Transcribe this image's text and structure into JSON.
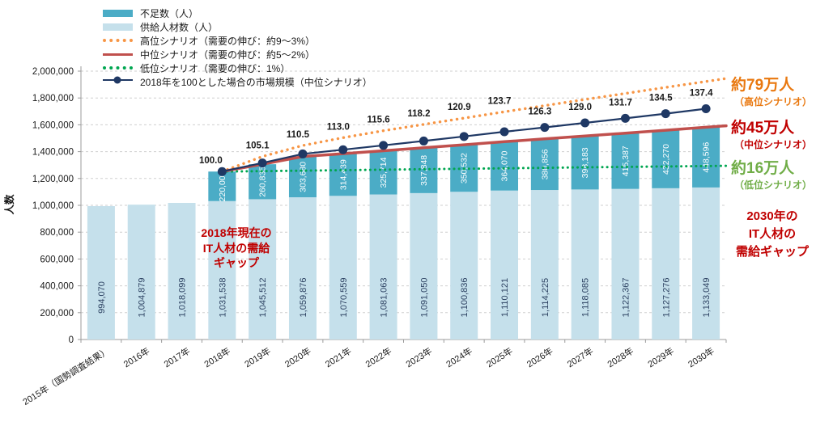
{
  "legend": {
    "items": [
      {
        "key": "shortage",
        "label": "不足数（人）"
      },
      {
        "key": "supply",
        "label": "供給人材数（人）"
      },
      {
        "key": "high",
        "label": "高位シナリオ（需要の伸び：約9～3%）"
      },
      {
        "key": "mid",
        "label": "中位シナリオ（需要の伸び：約5～2%）"
      },
      {
        "key": "low",
        "label": "低位シナリオ（需要の伸び：1%）"
      },
      {
        "key": "index",
        "label": "2018年を100とした場合の市場規模（中位シナリオ）"
      }
    ]
  },
  "annotations": {
    "current_gap": {
      "line1": "2018年現在の",
      "line2": "IT人材の需給",
      "line3": "ギャップ",
      "color": "#c00000"
    },
    "gap_high": {
      "value": "約79万人",
      "scenario": "（高位シナリオ）",
      "color": "#e9780f"
    },
    "gap_mid": {
      "value": "約45万人",
      "scenario": "（中位シナリオ）",
      "color": "#c00000"
    },
    "gap_low": {
      "value": "約16万人",
      "scenario": "（低位シナリオ）",
      "color": "#70ad47"
    },
    "gap_2030": {
      "line1": "2030年の",
      "line2": "IT人材の",
      "line3": "需給ギャップ",
      "color": "#c00000"
    }
  },
  "chart_data": {
    "type": "combo: stacked bar + line",
    "ylabel": "人数",
    "ylim": [
      0,
      2000000
    ],
    "ytick_step": 200000,
    "grid": "horizontal dashed",
    "legend_position": "top-left",
    "categories": [
      "2015年（国勢調査結果）",
      "2016年",
      "2017年",
      "2018年",
      "2019年",
      "2020年",
      "2021年",
      "2022年",
      "2023年",
      "2024年",
      "2025年",
      "2026年",
      "2027年",
      "2028年",
      "2029年",
      "2030年"
    ],
    "series": [
      {
        "key": "supply",
        "name": "供給人材数（人）",
        "type": "bar",
        "color": "#c5e0eb",
        "values": [
          994070,
          1004879,
          1018099,
          1031538,
          1045512,
          1059876,
          1070559,
          1081063,
          1091050,
          1100836,
          1110121,
          1114225,
          1118085,
          1122367,
          1127276,
          1133049
        ]
      },
      {
        "key": "shortage",
        "name": "不足数（人）",
        "type": "bar-stacked",
        "color": "#4bacc6",
        "values": [
          null,
          null,
          null,
          220000,
          260835,
          303680,
          314439,
          325714,
          337848,
          350532,
          364070,
          380856,
          398183,
          415387,
          432270,
          448596
        ]
      },
      {
        "key": "high",
        "name": "高位シナリオ（需要の伸び：約9～3%）",
        "type": "line-dotted",
        "color": "#f79646",
        "start_category_index": 3,
        "estimated": true,
        "values": [
          1251538,
          1364000,
          1446000,
          1504000,
          1556000,
          1603000,
          1650000,
          1697000,
          1743000,
          1789000,
          1834000,
          1879000,
          1923049
        ]
      },
      {
        "key": "mid",
        "name": "中位シナリオ（需要の伸び：約5～2%）",
        "type": "line",
        "color": "#c0504d",
        "start_category_index": 3,
        "derived": "supply + shortage",
        "values": [
          1251538,
          1306347,
          1363556,
          1384998,
          1406777,
          1428898,
          1451368,
          1474191,
          1495081,
          1516268,
          1537754,
          1559546,
          1581645
        ]
      },
      {
        "key": "low",
        "name": "低位シナリオ（需要の伸び：1%）",
        "type": "line-dotted",
        "color": "#00a651",
        "start_category_index": 3,
        "estimated": true,
        "values": [
          1251538,
          1255000,
          1258500,
          1262000,
          1265500,
          1269000,
          1272400,
          1275900,
          1279400,
          1282900,
          1286300,
          1289700,
          1293049
        ]
      },
      {
        "key": "index",
        "name": "2018年を100とした場合の市場規模（中位シナリオ）",
        "type": "line-marker",
        "color": "#1f3864",
        "start_category_index": 3,
        "axis": "index, 2018 = 100",
        "base_value": 1251538,
        "index_values": [
          100.0,
          105.1,
          110.5,
          113.0,
          115.6,
          118.2,
          120.9,
          123.7,
          126.3,
          129.0,
          131.7,
          134.5,
          137.4
        ]
      }
    ],
    "colors": {
      "supply_bar": "#c5e0eb",
      "shortage_bar": "#4bacc6",
      "high_line": "#f79646",
      "mid_line": "#c0504d",
      "low_line": "#00a651",
      "index_line": "#1f3864",
      "grid": "#cfcfcf",
      "axis": "#9b9b9b",
      "supply_value_text": "#2d4262",
      "shortage_value_text": "#ffffff",
      "index_label_text": "#1a1a1a"
    }
  }
}
